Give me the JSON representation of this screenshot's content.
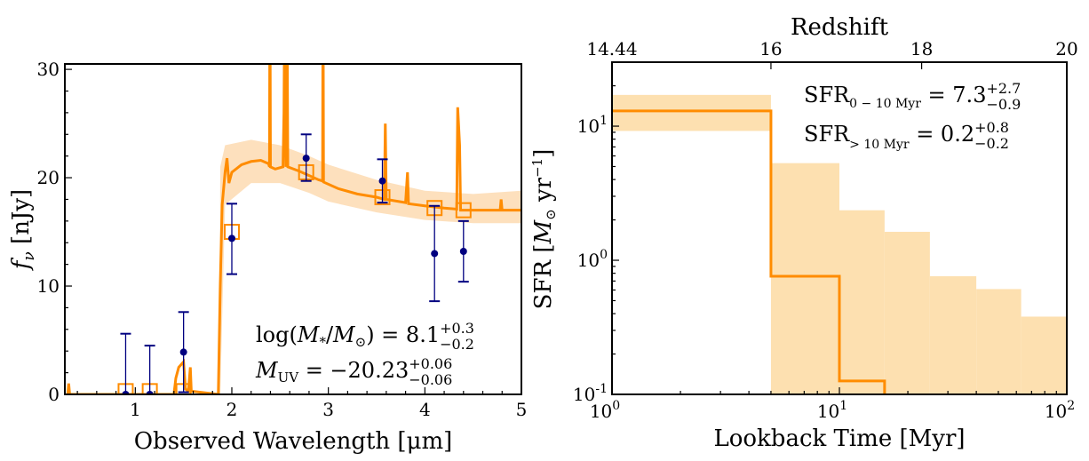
{
  "chart_data": [
    {
      "type": "line",
      "title": "",
      "xlabel": "Observed Wavelength [μm]",
      "ylabel_main": "f",
      "ylabel_sub": "ν",
      "ylabel_unit": " [nJy]",
      "xlim": [
        0.27,
        5
      ],
      "ylim": [
        0,
        30.5
      ],
      "xticks": [
        1,
        2,
        3,
        4,
        5
      ],
      "xtick_labels": [
        "1",
        "2",
        "3",
        "4",
        "5"
      ],
      "yticks": [
        0,
        10,
        20,
        30
      ],
      "ytick_labels": [
        "0",
        "10",
        "20",
        "30"
      ],
      "colors": {
        "model": "#ff8c00",
        "band": "#fde0bd",
        "photometry": "#000080"
      },
      "model_spectrum": [
        [
          0.3,
          0
        ],
        [
          0.31,
          1
        ],
        [
          0.32,
          0
        ],
        [
          1.4,
          0
        ],
        [
          1.42,
          1.5
        ],
        [
          1.45,
          2.5
        ],
        [
          1.5,
          3
        ],
        [
          1.52,
          0.5
        ],
        [
          1.55,
          0.3
        ],
        [
          1.57,
          2.5
        ],
        [
          1.58,
          0.3
        ],
        [
          1.86,
          0
        ],
        [
          1.88,
          10
        ],
        [
          1.9,
          17.5
        ],
        [
          1.93,
          20.5
        ],
        [
          1.95,
          21.8
        ],
        [
          1.97,
          19.5
        ],
        [
          2.0,
          20.5
        ],
        [
          2.1,
          21.2
        ],
        [
          2.2,
          21.5
        ],
        [
          2.3,
          21.6
        ],
        [
          2.38,
          21.3
        ],
        [
          2.39,
          21
        ],
        [
          2.395,
          40
        ],
        [
          2.4,
          21
        ],
        [
          2.45,
          20.8
        ],
        [
          2.53,
          21
        ],
        [
          2.54,
          26
        ],
        [
          2.55,
          40
        ],
        [
          2.56,
          21
        ],
        [
          2.57,
          40
        ],
        [
          2.58,
          21
        ],
        [
          2.7,
          20.6
        ],
        [
          2.8,
          20.2
        ],
        [
          2.9,
          19.8
        ],
        [
          2.94,
          19.7
        ],
        [
          2.945,
          40
        ],
        [
          2.95,
          19.6
        ],
        [
          3.1,
          19
        ],
        [
          3.3,
          18.5
        ],
        [
          3.5,
          18.2
        ],
        [
          3.58,
          18
        ],
        [
          3.59,
          25
        ],
        [
          3.6,
          18
        ],
        [
          3.8,
          17.7
        ],
        [
          3.82,
          20.5
        ],
        [
          3.83,
          17.6
        ],
        [
          4.0,
          17.4
        ],
        [
          4.2,
          17.2
        ],
        [
          4.33,
          17.1
        ],
        [
          4.34,
          26.5
        ],
        [
          4.36,
          23
        ],
        [
          4.37,
          17
        ],
        [
          4.6,
          17
        ],
        [
          4.78,
          17
        ],
        [
          4.79,
          18
        ],
        [
          4.8,
          17
        ],
        [
          5,
          17
        ]
      ],
      "model_band": [
        [
          1.87,
          0,
          0
        ],
        [
          1.88,
          0,
          21
        ],
        [
          1.93,
          17.5,
          23
        ],
        [
          2.2,
          19.5,
          23.5
        ],
        [
          2.5,
          19.5,
          23
        ],
        [
          2.8,
          18.6,
          22
        ],
        [
          3.0,
          17.8,
          21.2
        ],
        [
          3.5,
          16.8,
          19.8
        ],
        [
          4.0,
          16.1,
          18.8
        ],
        [
          4.5,
          15.8,
          18.5
        ],
        [
          5,
          15.8,
          18.8
        ]
      ],
      "model_photometry": [
        [
          0.9,
          0.3
        ],
        [
          1.15,
          0.3
        ],
        [
          1.5,
          0.3
        ],
        [
          2.0,
          15.0
        ],
        [
          2.77,
          20.5
        ],
        [
          3.56,
          18.2
        ],
        [
          4.1,
          17.2
        ],
        [
          4.4,
          17.0
        ]
      ],
      "photometry": [
        {
          "x": 0.9,
          "y": 0,
          "lo": 0,
          "hi": 5.6
        },
        {
          "x": 1.15,
          "y": 0,
          "lo": 0,
          "hi": 4.5
        },
        {
          "x": 1.5,
          "y": 3.9,
          "lo": 0.2,
          "hi": 7.6
        },
        {
          "x": 2.0,
          "y": 14.4,
          "lo": 11.1,
          "hi": 17.6
        },
        {
          "x": 2.77,
          "y": 21.8,
          "lo": 19.7,
          "hi": 24.0
        },
        {
          "x": 3.56,
          "y": 19.7,
          "lo": 17.7,
          "hi": 21.7
        },
        {
          "x": 4.1,
          "y": 13.0,
          "lo": 8.6,
          "hi": 17.4
        },
        {
          "x": 4.4,
          "y": 13.2,
          "lo": 10.4,
          "hi": 16.0
        }
      ],
      "annotations": {
        "mass": {
          "pre": "log(",
          "M": "M",
          "sub_star": "*",
          "slash": "/",
          "Msun": "M",
          "sub_sun": "⊙",
          "post": ") = 8.1",
          "sup": "+0.3",
          "sub": "−0.2"
        },
        "muv": {
          "M": "M",
          "sub_uv": "UV",
          "post": " = −20.23",
          "sup": "+0.06",
          "sub": "−0.06"
        }
      }
    },
    {
      "type": "step",
      "title": "",
      "xlabel": "Lookback Time [Myr]",
      "ylabel_pre": "SFR [",
      "ylabel_M": "M",
      "ylabel_sun": "⊙",
      "ylabel_post": " yr",
      "ylabel_exp": "−1",
      "ylabel_close": "]",
      "xscale": "log",
      "yscale": "log",
      "xlim": [
        1,
        100
      ],
      "ylim": [
        0.1,
        30
      ],
      "xticks": [
        {
          "base": "10",
          "exp": "0",
          "v": 1
        },
        {
          "base": "10",
          "exp": "1",
          "v": 10
        },
        {
          "base": "10",
          "exp": "2",
          "v": 100
        }
      ],
      "yticks": [
        {
          "base": "10",
          "exp": "-1",
          "v": 0.1
        },
        {
          "base": "10",
          "exp": "0",
          "v": 1
        },
        {
          "base": "10",
          "exp": "1",
          "v": 10
        }
      ],
      "top_axis": {
        "label": "Redshift",
        "ticks": [
          {
            "label": "14.44",
            "lookback_myr": 1
          },
          {
            "label": "16",
            "lookback_myr": 5.0
          },
          {
            "label": "18",
            "lookback_myr": 23
          },
          {
            "label": "20",
            "lookback_myr": 100
          }
        ]
      },
      "colors": {
        "median": "#ff8c00",
        "band": "#fde0b0"
      },
      "bins": [
        {
          "t0": 1,
          "t1": 5,
          "median": 13.0,
          "lo": 9.5,
          "hi": 17.1
        },
        {
          "t0": 5,
          "t1": 10,
          "median": 0.76,
          "lo": 0.1,
          "hi": 5.3
        },
        {
          "t0": 10,
          "t1": 15.8,
          "median": 0.126,
          "lo": 0.1,
          "hi": 2.36
        },
        {
          "t0": 15.8,
          "t1": 25,
          "median": 0.05,
          "lo": 0.1,
          "hi": 1.63
        },
        {
          "t0": 25,
          "t1": 40,
          "median": 0.05,
          "lo": 0.1,
          "hi": 0.76
        },
        {
          "t0": 40,
          "t1": 63,
          "median": 0.05,
          "lo": 0.1,
          "hi": 0.61
        },
        {
          "t0": 63,
          "t1": 100,
          "median": 0.05,
          "lo": 0.1,
          "hi": 0.38
        }
      ],
      "annotations": {
        "sfr10": {
          "base": "SFR",
          "sub": "0 − 10 Myr",
          "post": " = 7.3",
          "sup": "+2.7",
          "subv": "−0.9"
        },
        "sfrold": {
          "base": "SFR",
          "sub": "> 10 Myr",
          "post": " = 0.2",
          "sup": "+0.8",
          "subv": "−0.2"
        }
      }
    }
  ]
}
